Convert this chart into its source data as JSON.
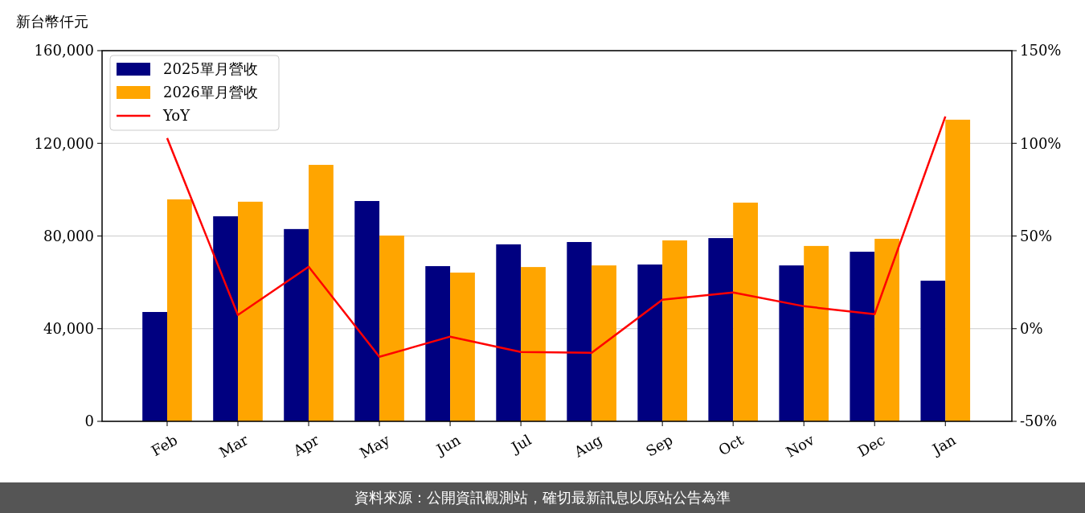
{
  "chart_data": {
    "type": "bar",
    "ylabel": "新台幣仟元",
    "categories": [
      "Feb",
      "Mar",
      "Apr",
      "May",
      "Jun",
      "Jul",
      "Aug",
      "Sep",
      "Oct",
      "Nov",
      "Dec",
      "Jan"
    ],
    "series": [
      {
        "name": "2025單月營收",
        "color": "#000080",
        "values": [
          47200,
          88500,
          83000,
          95100,
          67000,
          76400,
          77400,
          67700,
          79100,
          67300,
          73200,
          60700
        ]
      },
      {
        "name": "2026單月營收",
        "color": "#ffa500",
        "values": [
          95800,
          94800,
          110700,
          80200,
          64200,
          66600,
          67300,
          78100,
          94400,
          75700,
          78800,
          130200
        ]
      },
      {
        "name": "YoY",
        "type": "line",
        "axis": "y2",
        "color": "#ff0000",
        "values": [
          102.8,
          7.4,
          33.4,
          -15.2,
          -4.3,
          -12.6,
          -13.0,
          15.6,
          19.5,
          12.1,
          7.8,
          114.5
        ]
      }
    ],
    "ylim": [
      0,
      160000
    ],
    "yticks": [
      {
        "value": 0,
        "label": "0"
      },
      {
        "value": 40000,
        "label": "40,000"
      },
      {
        "value": 80000,
        "label": "80,000"
      },
      {
        "value": 120000,
        "label": "120,000"
      },
      {
        "value": 160000,
        "label": "160,000"
      }
    ],
    "y2lim": [
      -50,
      150
    ],
    "y2ticks": [
      {
        "value": -50,
        "label": "-50%"
      },
      {
        "value": 0,
        "label": "0%"
      },
      {
        "value": 50,
        "label": "50%"
      },
      {
        "value": 100,
        "label": "100%"
      },
      {
        "value": 150,
        "label": "150%"
      }
    ],
    "grid": "y",
    "legend": "top left",
    "annotations": [
      "資料來源：公開資訊觀測站，確切最新訊息以原站公告為準"
    ]
  }
}
